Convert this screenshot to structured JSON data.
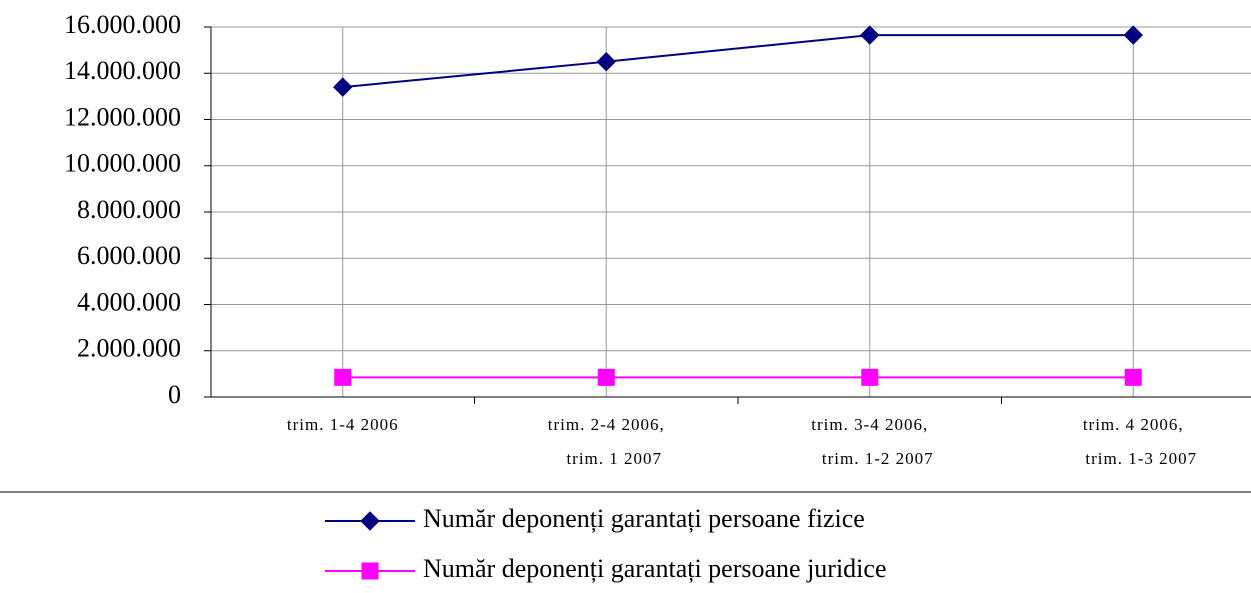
{
  "chart_data": {
    "type": "line",
    "categories": [
      [
        "trim. 1-4 2006"
      ],
      [
        "trim. 2-4 2006,",
        "trim. 1 2007"
      ],
      [
        "trim. 3-4 2006,",
        "trim. 1-2 2007"
      ],
      [
        "trim. 4 2006,",
        "trim. 1-3 2007"
      ]
    ],
    "series": [
      {
        "name": "Număr deponenți garantați persoane fizice",
        "color": "#000080",
        "marker": "diamond",
        "values": [
          13400000,
          14500000,
          15650000,
          15650000
        ]
      },
      {
        "name": "Număr deponenți garantați persoane juridice",
        "color": "#ff00ff",
        "marker": "square",
        "values": [
          850000,
          850000,
          850000,
          850000
        ]
      }
    ],
    "ylim": [
      0,
      16000000
    ],
    "yticks": [
      0,
      {
        "value": 2000000,
        "label": "2.000.000"
      },
      {
        "value": 4000000,
        "label": "4.000.000"
      },
      {
        "value": 6000000,
        "label": "6.000.000"
      },
      {
        "value": 8000000,
        "label": "8.000.000"
      },
      {
        "value": 10000000,
        "label": "10.000.000"
      },
      {
        "value": 12000000,
        "label": "12.000.000"
      },
      {
        "value": 14000000,
        "label": "14.000.000"
      },
      {
        "value": 16000000,
        "label": "16.000.000"
      }
    ],
    "grid": true,
    "legend": "bottom"
  }
}
